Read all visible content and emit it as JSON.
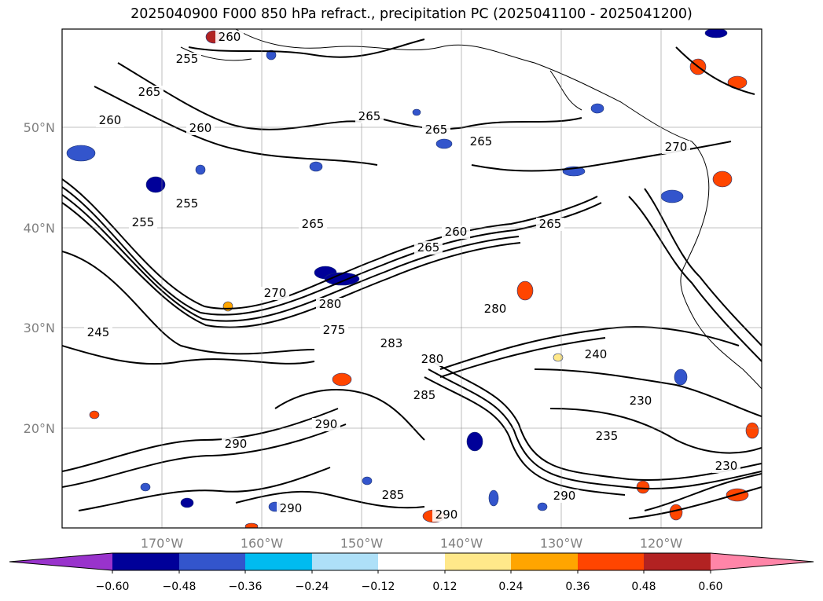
{
  "title": "2025040900 F000 850 hPa refract., precipitation PC (2025041100 - 2025041200)",
  "map": {
    "lat_labels": [
      "50°N",
      "40°N",
      "30°N",
      "20°N"
    ],
    "lon_labels": [
      "170°W",
      "160°W",
      "150°W",
      "140°W",
      "130°W",
      "120°W"
    ],
    "contour_labels": [
      "260",
      "255",
      "265",
      "260",
      "260",
      "265",
      "265",
      "265",
      "260",
      "270",
      "265",
      "255",
      "255",
      "270",
      "280",
      "265",
      "265",
      "245",
      "280",
      "275",
      "283",
      "280",
      "240",
      "230",
      "235",
      "230",
      "290",
      "290",
      "285",
      "290",
      "290",
      "285",
      "290"
    ],
    "grid": true
  },
  "colorbar": {
    "ticks": [
      "−0.60",
      "−0.48",
      "−0.36",
      "−0.24",
      "−0.12",
      "0.12",
      "0.24",
      "0.36",
      "0.48",
      "0.60"
    ],
    "colors": [
      "#9933cc",
      "#000099",
      "#3355cc",
      "#00bbf0",
      "#aee0f8",
      "#ffffff",
      "#ffe88a",
      "#ffa500",
      "#ff4500",
      "#b22222",
      "#ff85a8"
    ],
    "extend": "both"
  }
}
